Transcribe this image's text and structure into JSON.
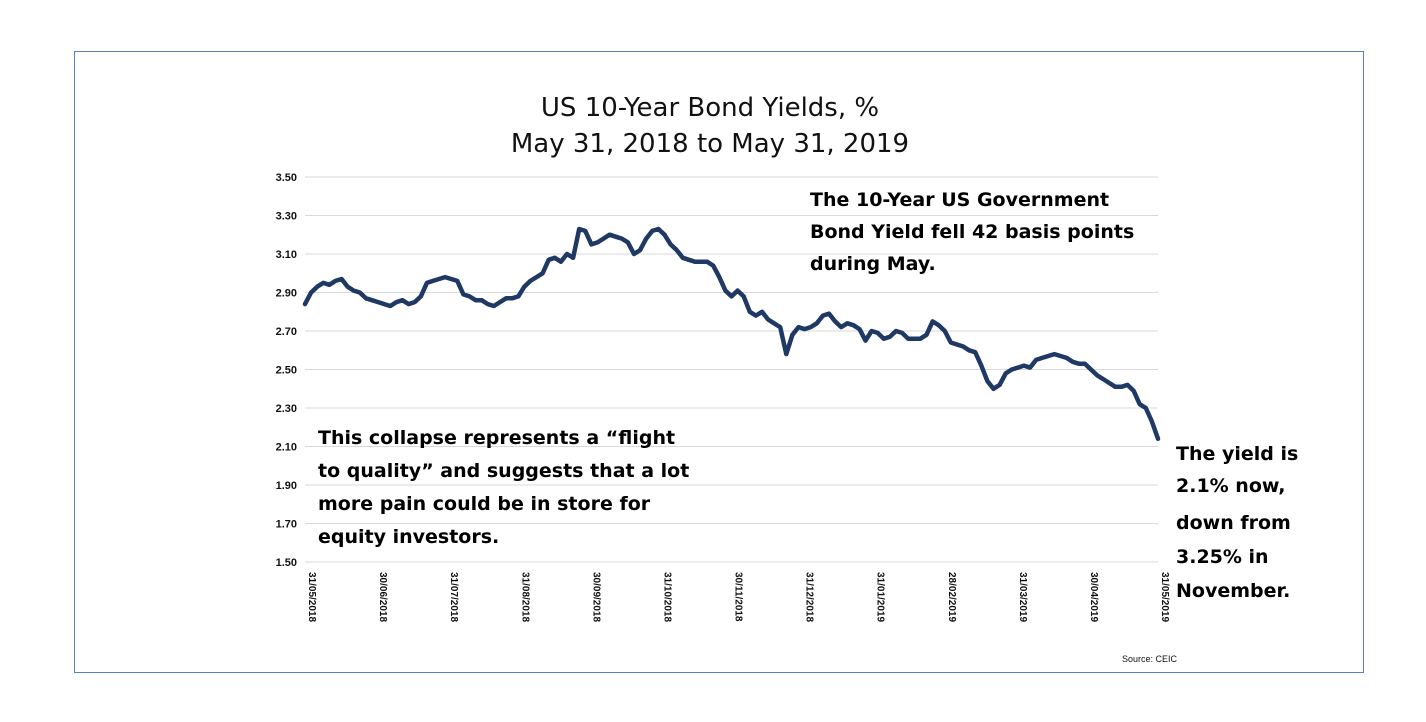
{
  "chart_data": {
    "type": "line",
    "title": [
      "US 10-Year Bond Yields, %",
      "May 31, 2018 to May 31, 2019"
    ],
    "ylim": [
      1.5,
      3.5
    ],
    "y_ticks": [
      "3.50",
      "3.30",
      "3.10",
      "2.90",
      "2.70",
      "2.50",
      "2.30",
      "2.10",
      "1.90",
      "1.70",
      "1.50"
    ],
    "x_ticks": [
      "31/05/2018",
      "30/06/2018",
      "31/07/2018",
      "31/08/2018",
      "30/09/2018",
      "31/10/2018",
      "30/11/2018",
      "31/12/2018",
      "31/01/2019",
      "28/02/2019",
      "31/03/2019",
      "30/04/2019",
      "31/05/2019"
    ],
    "series": [
      {
        "name": "US 10-Year Bond Yield",
        "color": "#1f3864",
        "values": [
          2.84,
          2.9,
          2.93,
          2.95,
          2.94,
          2.96,
          2.97,
          2.93,
          2.91,
          2.9,
          2.87,
          2.86,
          2.85,
          2.84,
          2.83,
          2.85,
          2.86,
          2.84,
          2.85,
          2.88,
          2.95,
          2.96,
          2.97,
          2.98,
          2.97,
          2.96,
          2.89,
          2.88,
          2.86,
          2.86,
          2.84,
          2.83,
          2.85,
          2.87,
          2.87,
          2.88,
          2.93,
          2.96,
          2.98,
          3.0,
          3.07,
          3.08,
          3.06,
          3.1,
          3.08,
          3.23,
          3.22,
          3.15,
          3.16,
          3.18,
          3.2,
          3.19,
          3.18,
          3.16,
          3.1,
          3.12,
          3.18,
          3.22,
          3.23,
          3.2,
          3.15,
          3.12,
          3.08,
          3.07,
          3.06,
          3.06,
          3.06,
          3.04,
          2.98,
          2.91,
          2.88,
          2.91,
          2.88,
          2.8,
          2.78,
          2.8,
          2.76,
          2.74,
          2.72,
          2.58,
          2.68,
          2.72,
          2.71,
          2.72,
          2.74,
          2.78,
          2.79,
          2.75,
          2.72,
          2.74,
          2.73,
          2.71,
          2.65,
          2.7,
          2.69,
          2.66,
          2.67,
          2.7,
          2.69,
          2.66,
          2.66,
          2.66,
          2.68,
          2.75,
          2.73,
          2.7,
          2.64,
          2.63,
          2.62,
          2.6,
          2.59,
          2.52,
          2.44,
          2.4,
          2.42,
          2.48,
          2.5,
          2.51,
          2.52,
          2.51,
          2.55,
          2.56,
          2.57,
          2.58,
          2.57,
          2.56,
          2.54,
          2.53,
          2.53,
          2.5,
          2.47,
          2.45,
          2.43,
          2.41,
          2.41,
          2.42,
          2.39,
          2.32,
          2.3,
          2.23,
          2.14
        ]
      }
    ],
    "annotations": [
      [
        "The 10-Year US Government",
        "Bond Yield fell 42 basis points",
        "during May."
      ],
      [
        "This collapse represents a “flight",
        "to quality” and suggests that a lot",
        "more pain could be in store for",
        "equity investors."
      ],
      [
        "The yield is",
        "2.1% now,",
        "down from",
        "3.25% in",
        "November."
      ]
    ],
    "source": "Source: CEIC"
  }
}
